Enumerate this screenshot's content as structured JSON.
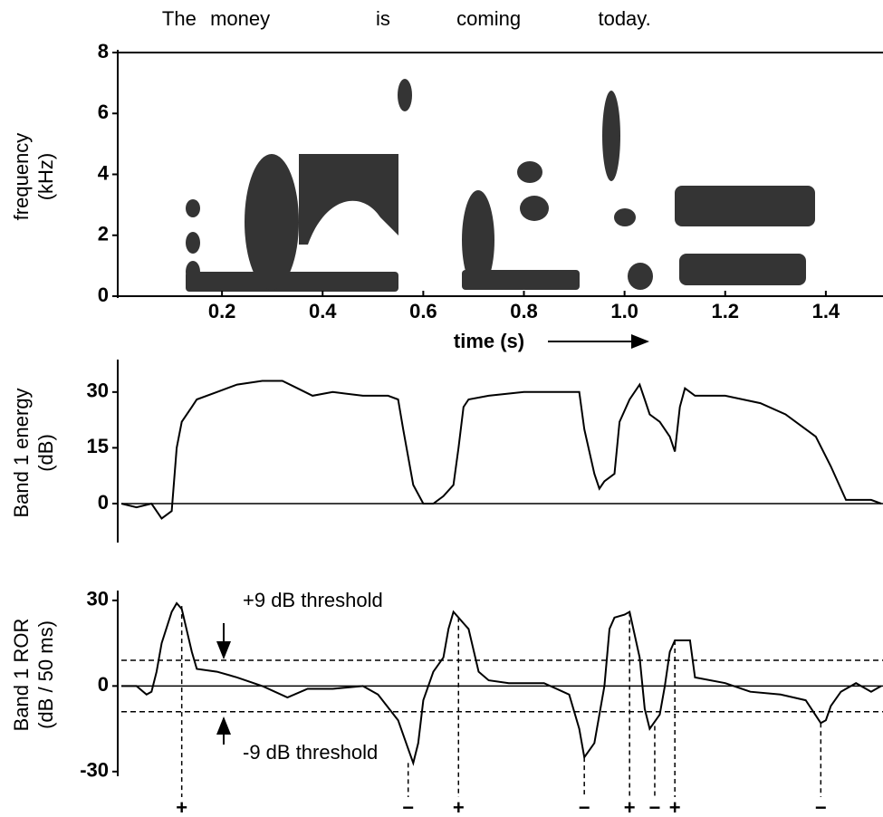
{
  "chart_data": [
    {
      "type": "spectrogram",
      "words": [
        {
          "text": "The",
          "x": 0.115
        },
        {
          "text": "money",
          "x": 0.236
        },
        {
          "text": "is",
          "x": 0.52
        },
        {
          "text": "coming",
          "x": 0.73
        },
        {
          "text": "today.",
          "x": 1.0
        }
      ],
      "xlabel": "time (s)",
      "ylabel": [
        "frequency",
        "(kHz)"
      ],
      "xlim": [
        0,
        1.51
      ],
      "xticks": [
        0.2,
        0.4,
        0.6,
        0.8,
        {
          "value": 1,
          "label": "1.0"
        },
        1.2,
        1.4
      ],
      "ylim": [
        0,
        8
      ],
      "yticks": [
        0,
        2,
        4,
        6,
        8
      ]
    },
    {
      "type": "line",
      "ylabel": [
        "Band 1 energy",
        "(dB)"
      ],
      "xlim": [
        0,
        1.51
      ],
      "ylim": [
        -10,
        38
      ],
      "yticks": [
        0,
        15,
        30
      ],
      "reference_line": 0,
      "color": "#000000",
      "x": [
        0,
        0.03,
        0.06,
        0.08,
        0.1,
        0.11,
        0.12,
        0.14,
        0.15,
        0.19,
        0.23,
        0.28,
        0.32,
        0.35,
        0.38,
        0.42,
        0.48,
        0.53,
        0.55,
        0.56,
        0.58,
        0.6,
        0.62,
        0.64,
        0.66,
        0.67,
        0.68,
        0.69,
        0.73,
        0.8,
        0.87,
        0.91,
        0.92,
        0.94,
        0.95,
        0.96,
        0.98,
        0.99,
        1.01,
        1.03,
        1.04,
        1.05,
        1.07,
        1.09,
        1.1,
        1.11,
        1.12,
        1.14,
        1.2,
        1.27,
        1.32,
        1.38,
        1.41,
        1.43,
        1.44,
        1.49,
        1.51
      ],
      "values": [
        0,
        -1,
        0,
        -4,
        -2,
        15,
        22,
        26,
        28,
        30,
        32,
        33,
        33,
        31,
        29,
        30,
        29,
        29,
        28,
        20,
        5,
        0,
        0,
        2,
        5,
        15,
        26,
        28,
        29,
        30,
        30,
        30,
        20,
        8,
        4,
        6,
        8,
        22,
        28,
        32,
        28,
        24,
        22,
        18,
        14,
        26,
        31,
        29,
        29,
        27,
        24,
        18,
        10,
        4,
        1,
        1,
        0
      ]
    },
    {
      "type": "line",
      "ylabel": [
        "Band 1 ROR",
        "(dB / 50 ms)"
      ],
      "xlim": [
        0,
        1.51
      ],
      "ylim": [
        -31,
        32.5
      ],
      "yticks": [
        -30,
        0,
        30
      ],
      "reference_line": 0,
      "color": "#000000",
      "x": [
        0,
        0.03,
        0.05,
        0.06,
        0.07,
        0.08,
        0.1,
        0.11,
        0.12,
        0.14,
        0.15,
        0.19,
        0.23,
        0.28,
        0.33,
        0.37,
        0.42,
        0.48,
        0.51,
        0.55,
        0.57,
        0.58,
        0.59,
        0.6,
        0.62,
        0.64,
        0.65,
        0.66,
        0.68,
        0.69,
        0.71,
        0.73,
        0.77,
        0.84,
        0.89,
        0.91,
        0.92,
        0.94,
        0.96,
        0.97,
        0.98,
        1.0,
        1.01,
        1.03,
        1.04,
        1.05,
        1.07,
        1.08,
        1.09,
        1.1,
        1.12,
        1.13,
        1.14,
        1.2,
        1.25,
        1.31,
        1.36,
        1.39,
        1.4,
        1.41,
        1.43,
        1.46,
        1.49,
        1.51
      ],
      "values": [
        0,
        0,
        -3,
        -2,
        5,
        15,
        26,
        29,
        27,
        12,
        6,
        5,
        3,
        0,
        -4,
        -1,
        -1,
        0,
        -3,
        -12,
        -22,
        -27,
        -20,
        -5,
        5,
        10,
        20,
        26,
        22,
        20,
        5,
        2,
        1,
        1,
        -3,
        -15,
        -25,
        -20,
        0,
        20,
        24,
        25,
        26,
        10,
        -8,
        -15,
        -10,
        0,
        12,
        16,
        16,
        16,
        3,
        1,
        -2,
        -3,
        -5,
        -13,
        -12,
        -7,
        -2,
        1,
        -2,
        0
      ],
      "thresholds": [
        {
          "value": 9,
          "label": "+9 dB threshold"
        },
        {
          "value": -9,
          "label": "-9 dB threshold"
        }
      ],
      "events": [
        {
          "x": 0.12,
          "value": 28,
          "label": "+"
        },
        {
          "x": 0.57,
          "value": -27,
          "label": "−"
        },
        {
          "x": 0.67,
          "value": 24,
          "label": "+"
        },
        {
          "x": 0.92,
          "value": -25,
          "label": "−"
        },
        {
          "x": 1.01,
          "value": 26,
          "label": "+"
        },
        {
          "x": 1.06,
          "value": -14,
          "label": "−"
        },
        {
          "x": 1.1,
          "value": 16,
          "label": "+"
        },
        {
          "x": 1.39,
          "value": -13,
          "label": "−"
        }
      ]
    }
  ]
}
